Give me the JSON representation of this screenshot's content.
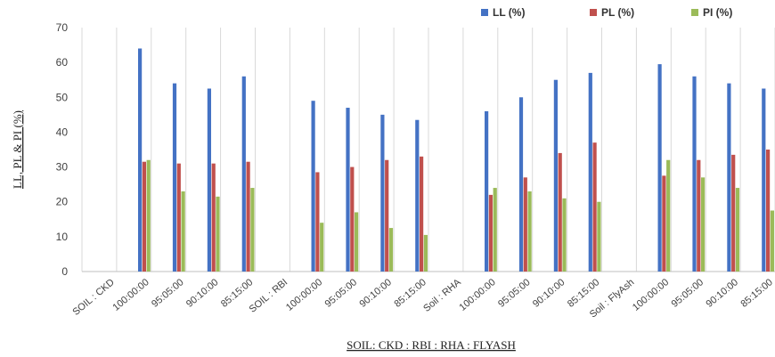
{
  "chart_data": {
    "type": "bar",
    "title": "",
    "xlabel": "SOIL: CKD : RBI : RHA : FLYASH",
    "ylabel": "LL, PL & PI (%)",
    "ylim": [
      0,
      70
    ],
    "yticks": [
      0,
      10,
      20,
      30,
      40,
      50,
      60,
      70
    ],
    "grid": "vertical",
    "legend": "top-right",
    "categories": [
      "SOIL : CKD",
      "100:00:00",
      "95:05:00",
      "90:10:00",
      "85:15:00",
      "SOIL : RBI",
      "100:00:00",
      "95:05:00",
      "90:10:00",
      "85:15:00",
      "Soil : RHA",
      "100:00:00",
      "95:05:00",
      "90:10:00",
      "85:15:00",
      "Soil : FlyAsh",
      "100:00:00",
      "95:05:00",
      "90:10:00",
      "85:15:00"
    ],
    "series": [
      {
        "name": "LL (%)",
        "color": "#4472C4",
        "values": [
          null,
          64,
          54,
          52.5,
          56,
          null,
          49,
          47,
          45,
          43.5,
          null,
          46,
          50,
          55,
          57,
          null,
          59.5,
          56,
          54,
          52.5
        ]
      },
      {
        "name": "PL (%)",
        "color": "#C0504D",
        "values": [
          null,
          31.5,
          31,
          31,
          31.5,
          null,
          28.5,
          30,
          32,
          33,
          null,
          22,
          27,
          34,
          37,
          null,
          27.5,
          32,
          33.5,
          35
        ]
      },
      {
        "name": "PI (%)",
        "color": "#9BBB59",
        "values": [
          null,
          32,
          23,
          21.5,
          24,
          null,
          14,
          17,
          12.5,
          10.5,
          null,
          24,
          23,
          21,
          20,
          null,
          32,
          27,
          24,
          17.5
        ]
      }
    ]
  }
}
